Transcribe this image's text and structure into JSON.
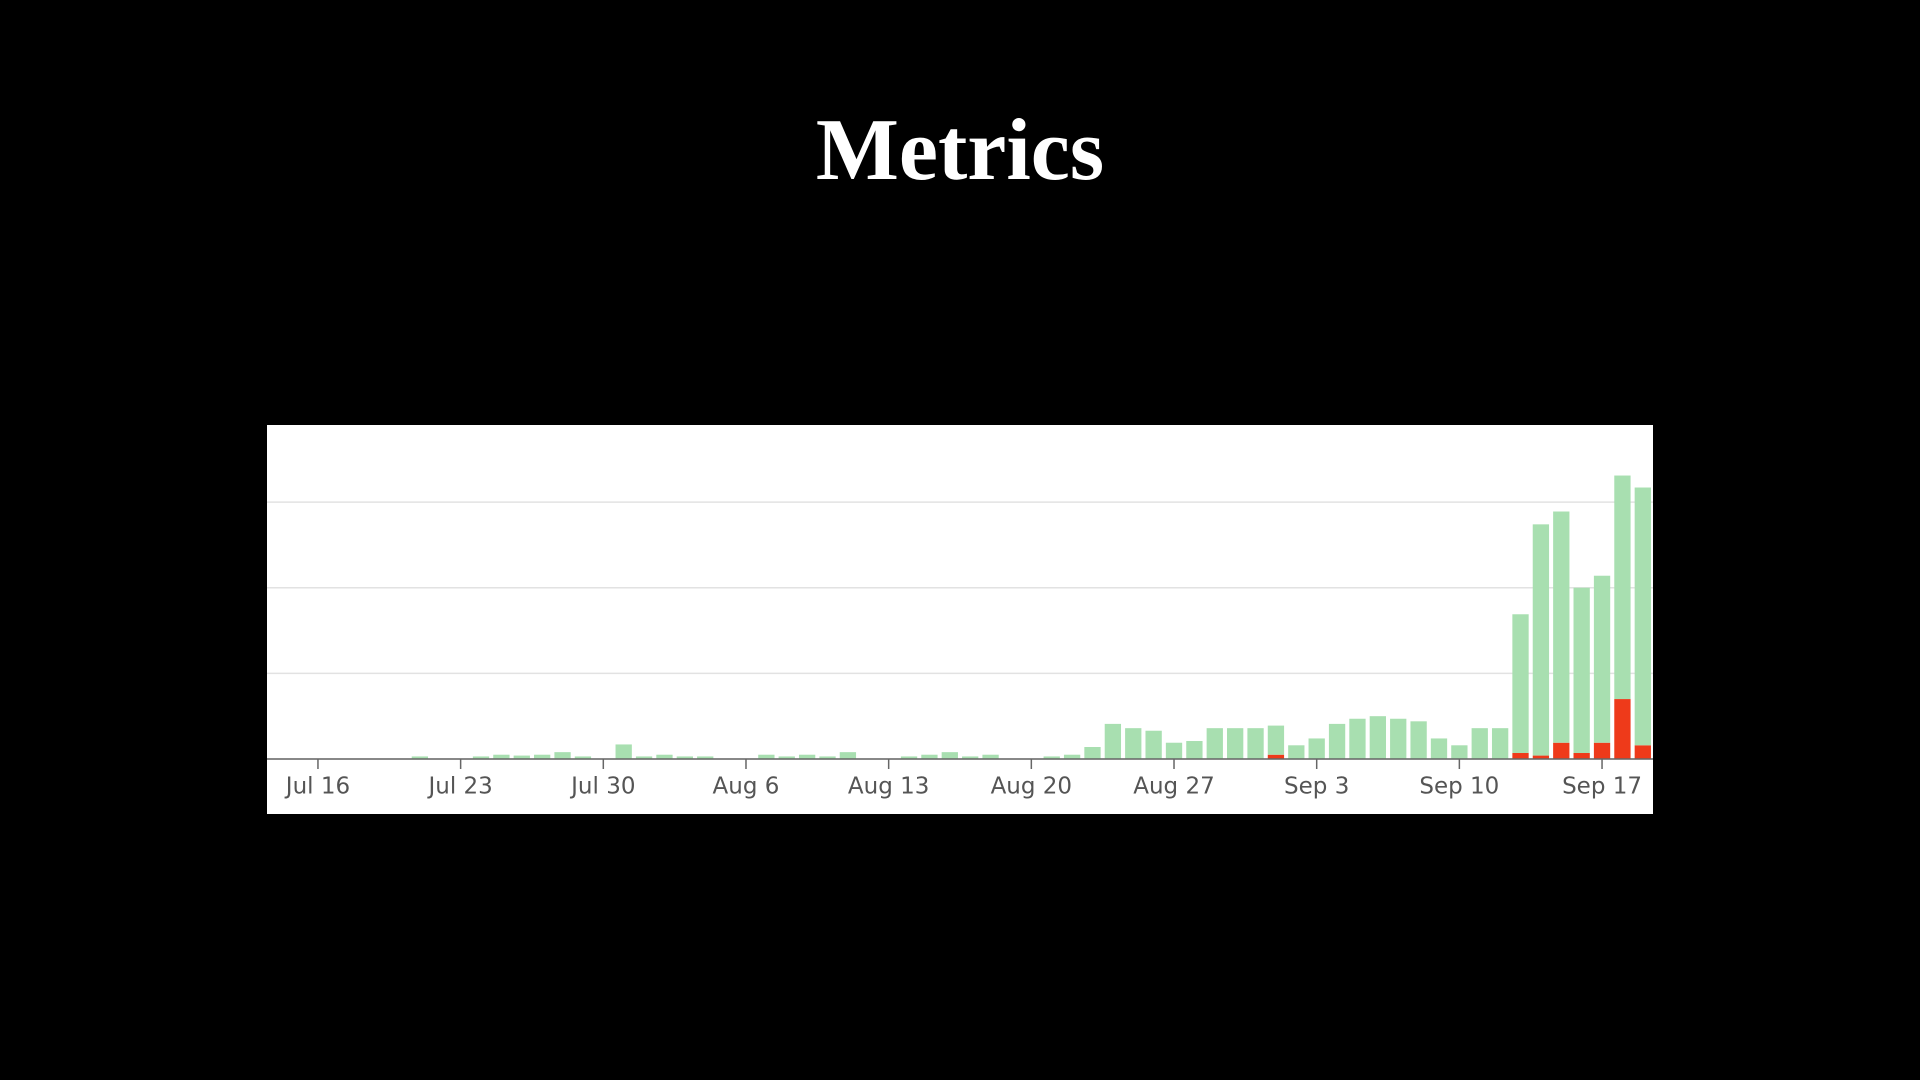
{
  "title": "Metrics",
  "chart_data": {
    "type": "bar",
    "stacked": true,
    "categories": [
      null,
      null,
      "Jul 16",
      null,
      null,
      null,
      null,
      null,
      null,
      "Jul 23",
      null,
      null,
      null,
      null,
      null,
      null,
      "Jul 30",
      null,
      null,
      null,
      null,
      null,
      null,
      "Aug 6",
      null,
      null,
      null,
      null,
      null,
      null,
      "Aug 13",
      null,
      null,
      null,
      null,
      null,
      null,
      "Aug 20",
      null,
      null,
      null,
      null,
      null,
      null,
      "Aug 27",
      null,
      null,
      null,
      null,
      null,
      null,
      "Sep 3",
      null,
      null,
      null,
      null,
      null,
      null,
      "Sep 10",
      null,
      null,
      null,
      null,
      null,
      null,
      "Sep 17",
      null,
      null
    ],
    "series": [
      {
        "color": "#ee3a1a",
        "values": [
          0,
          0,
          0,
          0,
          0,
          0,
          0,
          0,
          0,
          0,
          0,
          0,
          0,
          0,
          0,
          0,
          0,
          0,
          0,
          0,
          0,
          0,
          0,
          0,
          0,
          0,
          0,
          0,
          0,
          0,
          0,
          0,
          0,
          0,
          0,
          0,
          0,
          0,
          0,
          0,
          0,
          0,
          0,
          0,
          0,
          0,
          0,
          0,
          0,
          0.05,
          0,
          0,
          0,
          0,
          0,
          0,
          0,
          0,
          0,
          0,
          0,
          0.07,
          0.04,
          0.19,
          0.07,
          0.19,
          0.7,
          0.16
        ]
      },
      {
        "color": "#a8dfb0",
        "values": [
          0,
          0,
          0,
          0,
          0,
          0,
          0,
          0.03,
          0,
          0,
          0.03,
          0.05,
          0.04,
          0.05,
          0.08,
          0.03,
          0,
          0.17,
          0.03,
          0.05,
          0.03,
          0.03,
          0,
          0,
          0.05,
          0.03,
          0.05,
          0.03,
          0.08,
          0,
          0,
          0.03,
          0.05,
          0.08,
          0.03,
          0.05,
          0,
          0,
          0.03,
          0.05,
          0.14,
          0.41,
          0.36,
          0.33,
          0.19,
          0.21,
          0.36,
          0.36,
          0.36,
          0.34,
          0.16,
          0.24,
          0.41,
          0.47,
          0.5,
          0.47,
          0.44,
          0.24,
          0.16,
          0.36,
          0.36,
          1.62,
          2.7,
          2.7,
          1.93,
          1.95,
          2.61,
          3.01
        ]
      }
    ],
    "ylim": [
      0,
      3.9
    ],
    "yticks": [
      0,
      1,
      2,
      3
    ],
    "grid": true
  }
}
